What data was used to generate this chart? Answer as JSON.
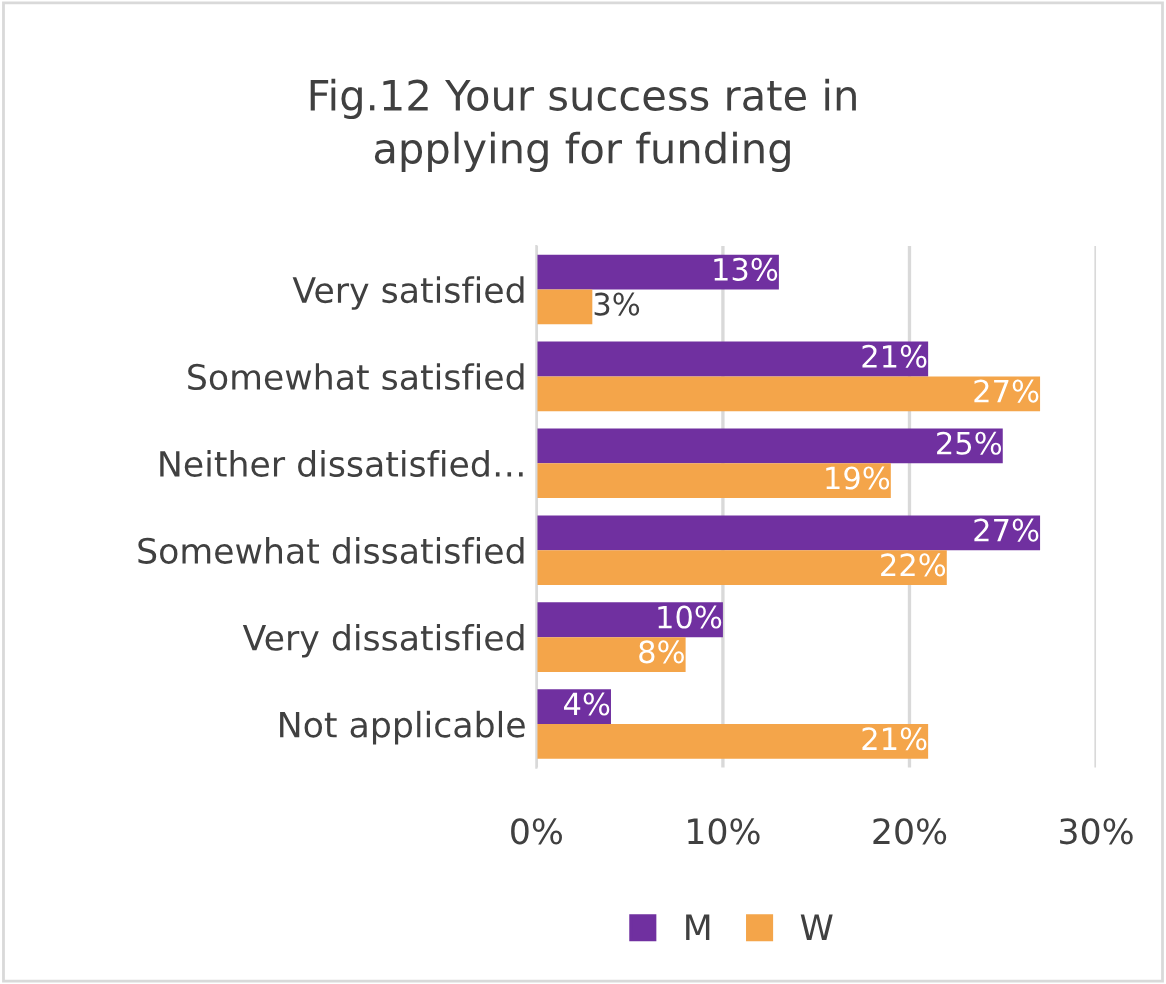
{
  "chart_data": {
    "type": "bar",
    "orientation": "horizontal",
    "title": "Fig.12 Your success rate in\napplying for funding",
    "categories": [
      "Very satisfied",
      "Somewhat satisfied",
      "Neither dissatisfied…",
      "Somewhat dissatisfied",
      "Very dissatisfied",
      "Not applicable"
    ],
    "series": [
      {
        "name": "M",
        "color": "#7030a0",
        "values": [
          13,
          21,
          25,
          27,
          10,
          4
        ],
        "value_labels": [
          "13%",
          "21%",
          "25%",
          "27%",
          "10%",
          "4%"
        ]
      },
      {
        "name": "W",
        "color": "#f4a54a",
        "values": [
          3,
          27,
          19,
          22,
          8,
          21
        ],
        "value_labels": [
          "3%",
          "27%",
          "19%",
          "22%",
          "8%",
          "21%"
        ]
      }
    ],
    "xlim": [
      0,
      30
    ],
    "xticks": [
      {
        "value": 0,
        "label": "0%"
      },
      {
        "value": 10,
        "label": "10%"
      },
      {
        "value": 20,
        "label": "20%"
      },
      {
        "value": 30,
        "label": "30%"
      }
    ],
    "grid": "x",
    "legend": "bottom"
  }
}
